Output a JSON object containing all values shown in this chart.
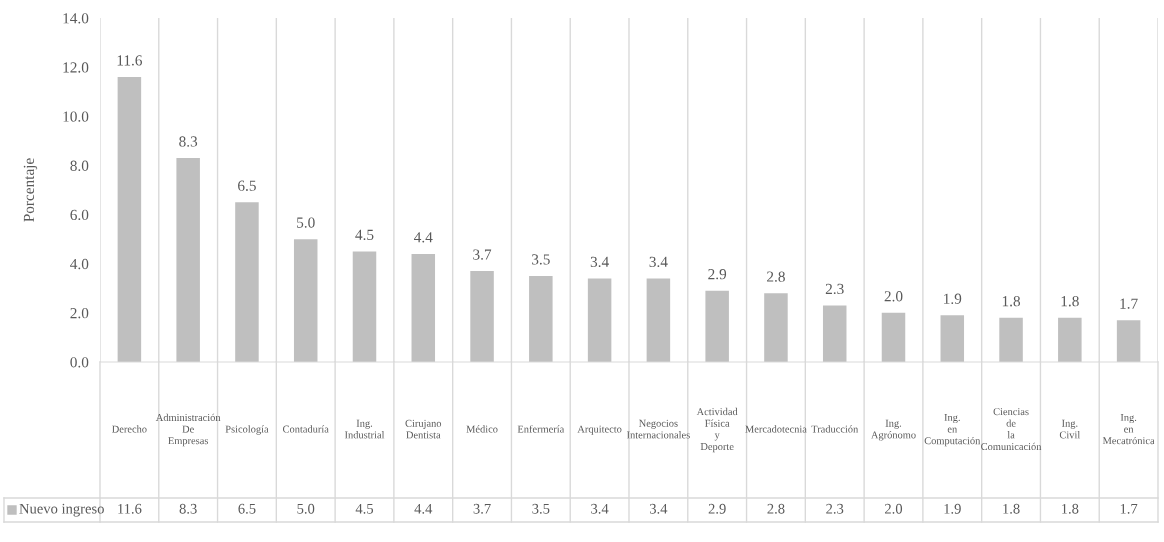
{
  "chart_data": {
    "type": "bar",
    "ylabel": "Porcentaje",
    "categories": [
      "Derecho",
      "Administración De Empresas",
      "Psicología",
      "Contaduría",
      "Ing. Industrial",
      "Cirujano Dentista",
      "Médico",
      "Enfermería",
      "Arquitecto",
      "Negocios Internacionales",
      "Actividad Física y Deporte",
      "Mercadotecnia",
      "Traducción",
      "Ing. Agrónomo",
      "Ing. en Computación",
      "Ciencias de la Comunicación",
      "Ing. Civil",
      "Ing. en Mecatrónica"
    ],
    "series": [
      {
        "name": "Nuevo ingreso",
        "color": "#bfbfbf",
        "values": [
          11.6,
          8.3,
          6.5,
          5.0,
          4.5,
          4.4,
          3.7,
          3.5,
          3.4,
          3.4,
          2.9,
          2.8,
          2.3,
          2.0,
          1.9,
          1.8,
          1.8,
          1.7
        ],
        "value_labels": [
          "11.6",
          "8.3",
          "6.5",
          "5.0",
          "4.5",
          "4.4",
          "3.7",
          "3.5",
          "3.4",
          "3.4",
          "2.9",
          "2.8",
          "2.3",
          "2.0",
          "1.9",
          "1.8",
          "1.8",
          "1.7"
        ]
      }
    ],
    "ylim": [
      0,
      14
    ],
    "yticks": [
      {
        "value": 0,
        "label": "0.0"
      },
      {
        "value": 2,
        "label": "2.0"
      },
      {
        "value": 4,
        "label": "4.0"
      },
      {
        "value": 6,
        "label": "6.0"
      },
      {
        "value": 8,
        "label": "8.0"
      },
      {
        "value": 10,
        "label": "10.0"
      },
      {
        "value": 12,
        "label": "12.0"
      },
      {
        "value": 14,
        "label": "14.0"
      }
    ],
    "grid": "x"
  }
}
